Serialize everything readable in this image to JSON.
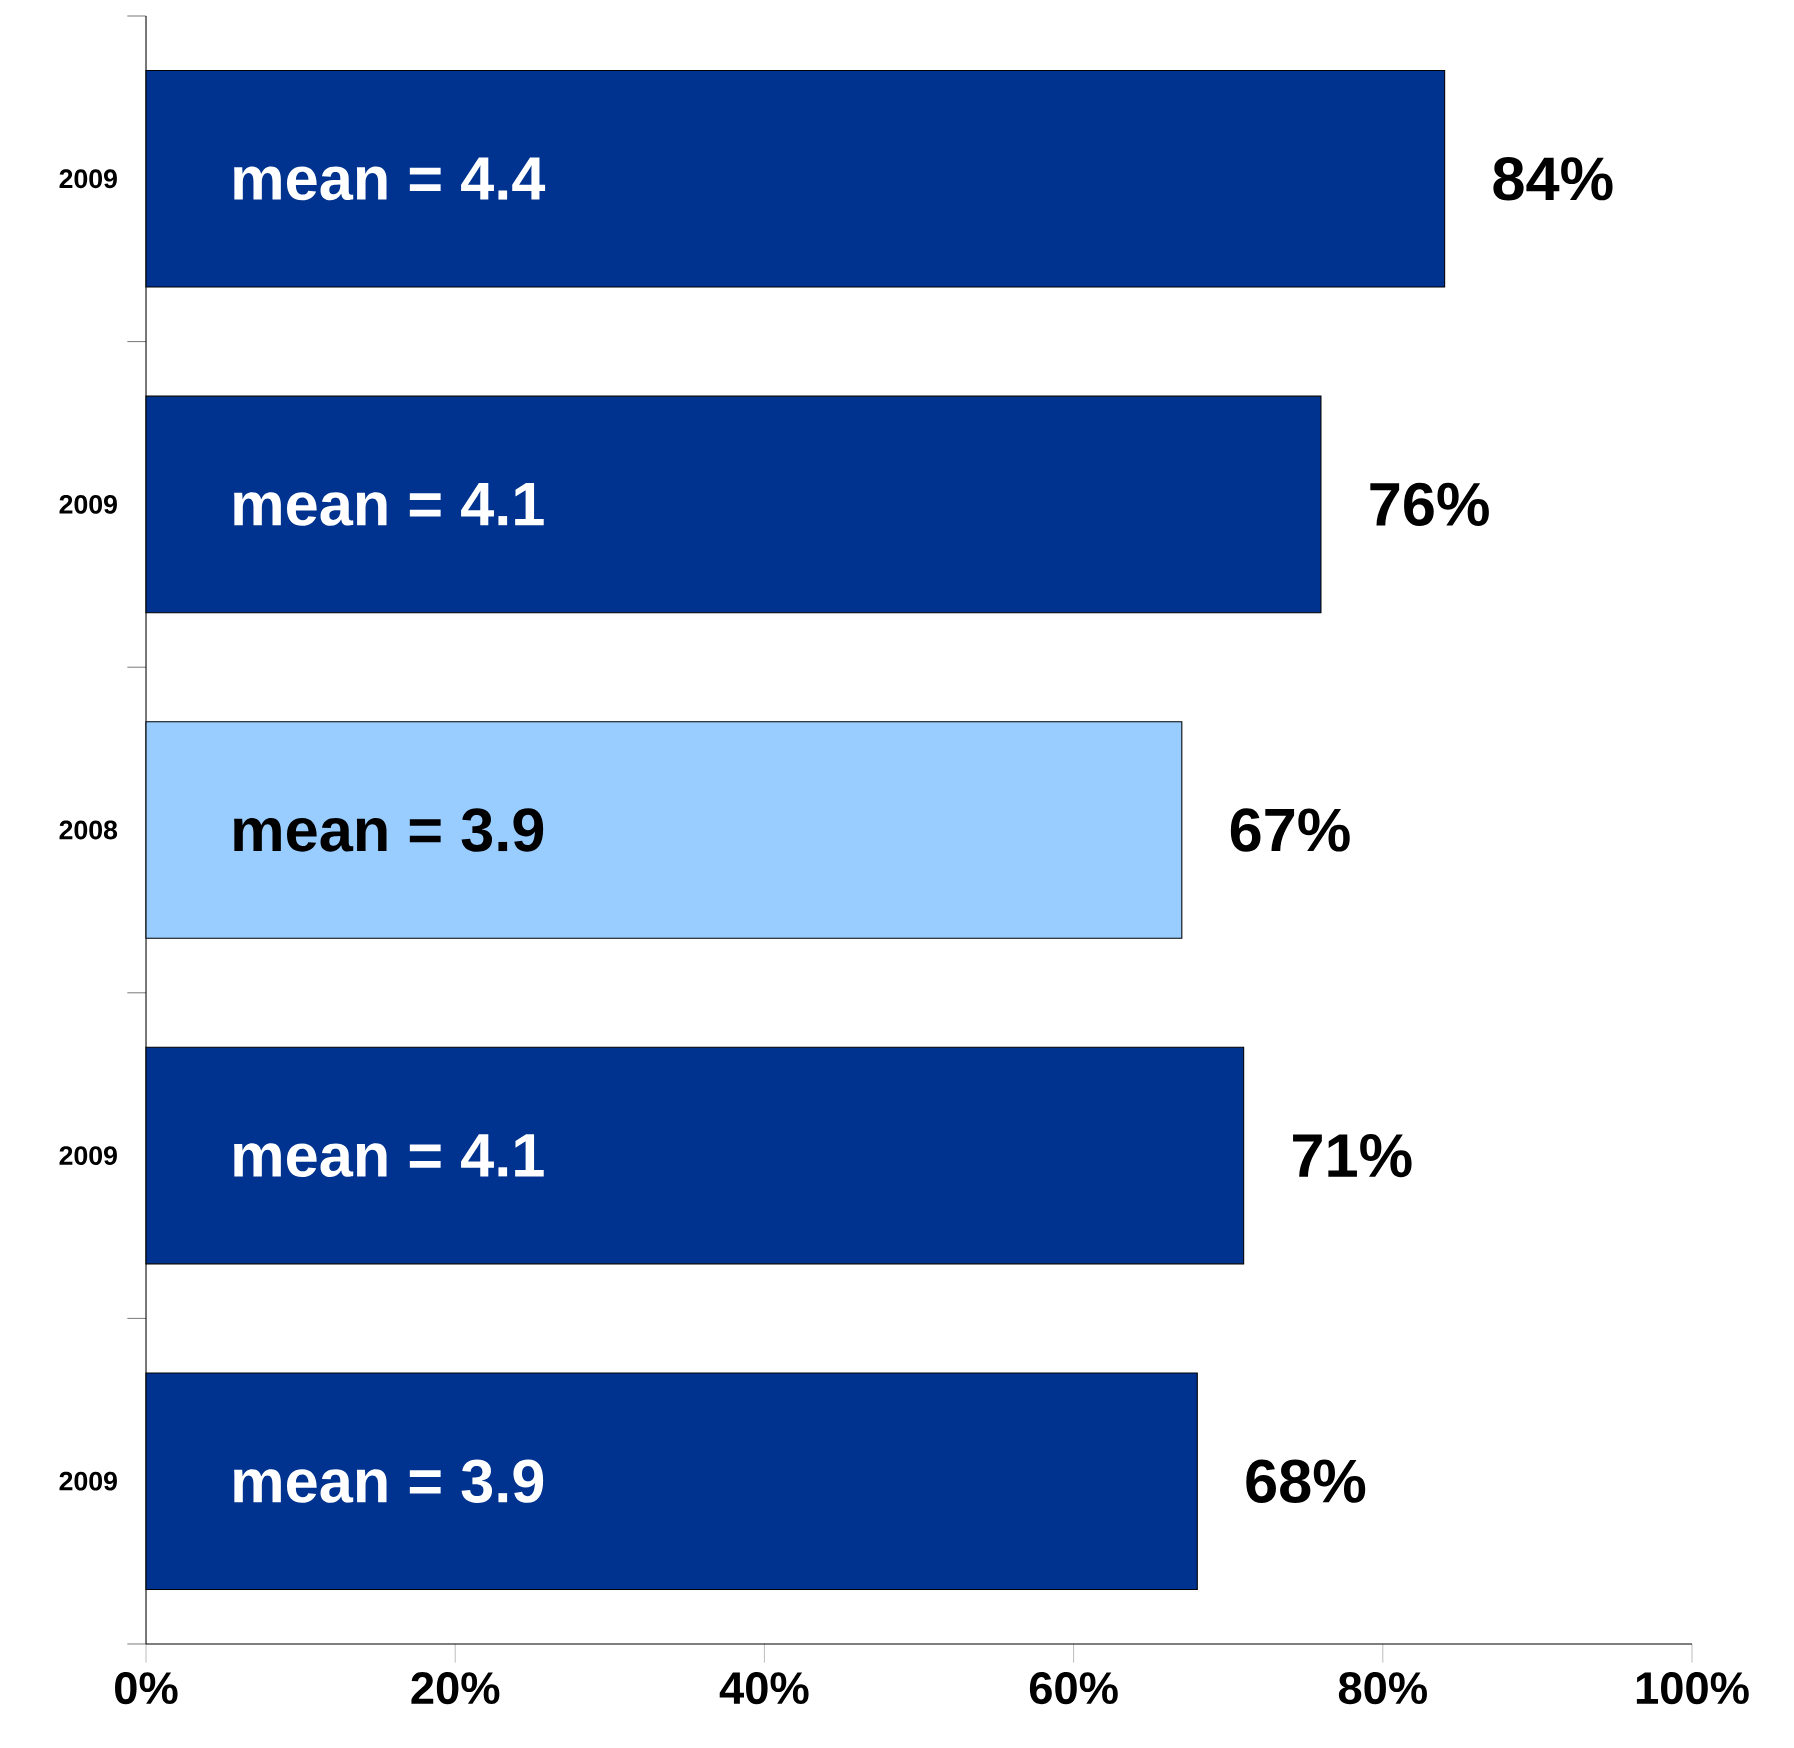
{
  "chart_data": {
    "type": "bar",
    "orientation": "horizontal",
    "categories": [
      "2009",
      "2009",
      "2008",
      "2009",
      "2009"
    ],
    "values": [
      84,
      76,
      67,
      71,
      68
    ],
    "colors": [
      "#00338f",
      "#00338f",
      "#99ccff",
      "#00338f",
      "#00338f"
    ],
    "value_labels": [
      "84%",
      "76%",
      "67%",
      "71%",
      "68%"
    ],
    "annotations": [
      "mean = 4.4",
      "mean = 4.1",
      "mean = 3.9",
      "mean = 4.1",
      "mean = 3.9"
    ],
    "xlim": [
      0,
      100
    ],
    "xticks": [
      {
        "value": 0,
        "label": "0%"
      },
      {
        "value": 20,
        "label": "20%"
      },
      {
        "value": 40,
        "label": "40%"
      },
      {
        "value": 60,
        "label": "60%"
      },
      {
        "value": 80,
        "label": "80%"
      },
      {
        "value": 100,
        "label": "100%"
      }
    ]
  }
}
